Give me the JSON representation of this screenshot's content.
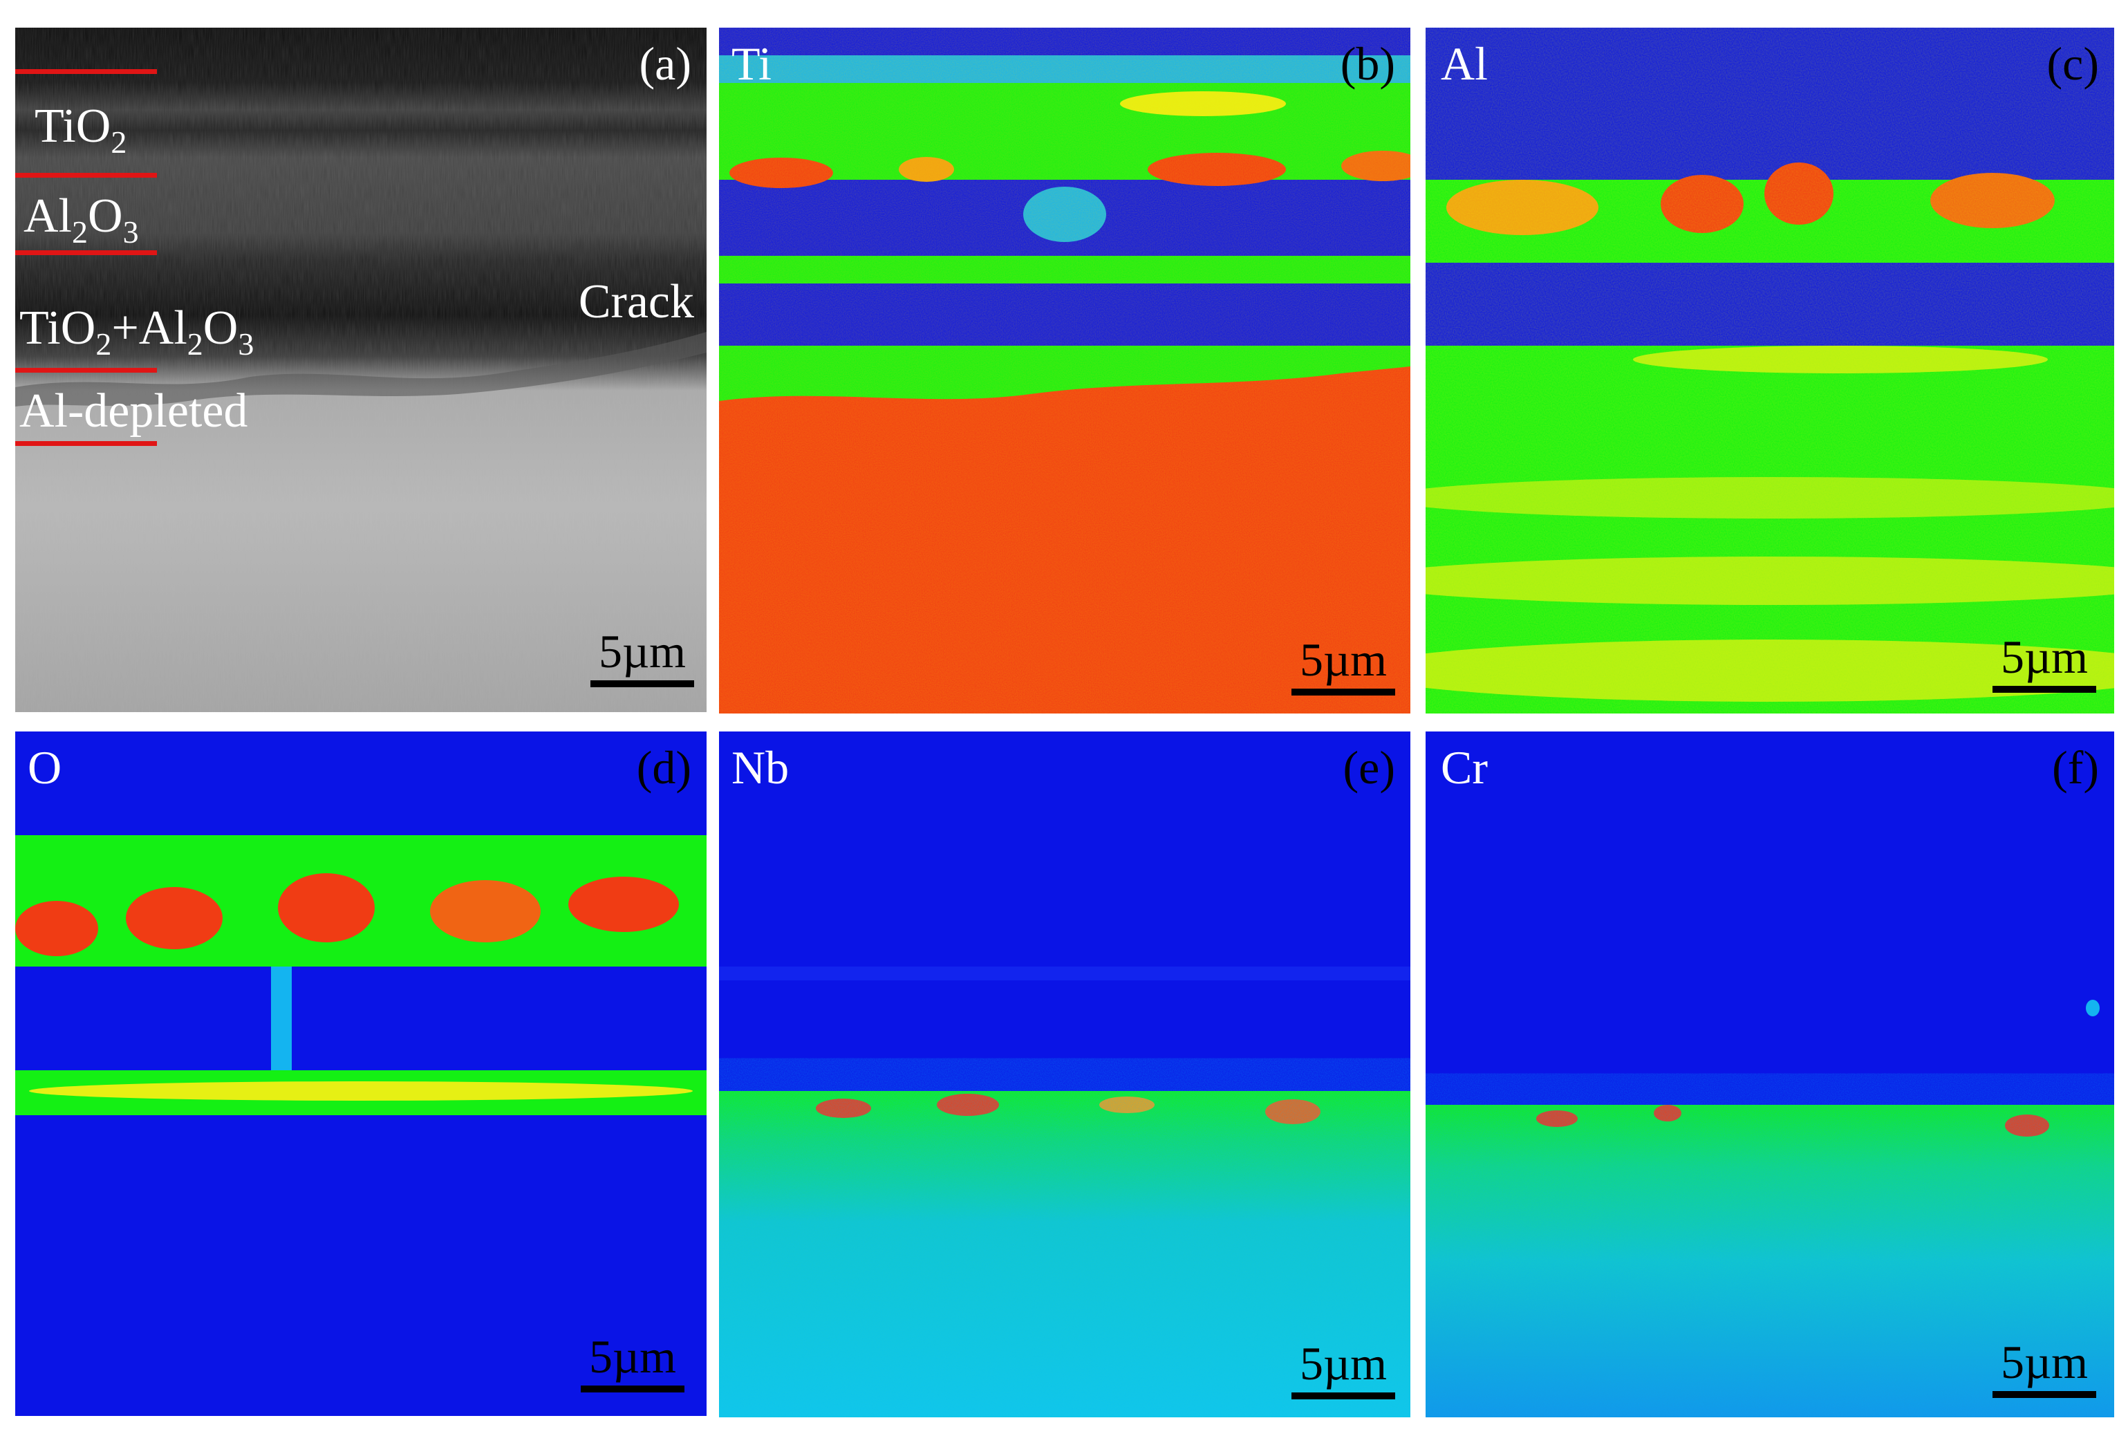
{
  "panels": {
    "a": {
      "tag": "(a)",
      "scale": "5µm",
      "layers": {
        "tio2": [
          "TiO",
          "2"
        ],
        "al2o3": [
          "Al",
          "2",
          "O",
          "3"
        ],
        "mixed": [
          "TiO",
          "2",
          "+Al",
          "2",
          "O",
          "3"
        ],
        "depleted": "Al-depleted"
      },
      "crack": "Crack"
    },
    "b": {
      "tag": "(b)",
      "element": "Ti",
      "scale": "5µm"
    },
    "c": {
      "tag": "(c)",
      "element": "Al",
      "scale": "5µm"
    },
    "d": {
      "tag": "(d)",
      "element": "O",
      "scale": "5µm"
    },
    "e": {
      "tag": "(e)",
      "element": "Nb",
      "scale": "5µm"
    },
    "f": {
      "tag": "(f)",
      "element": "Cr",
      "scale": "5µm"
    }
  },
  "colors": {
    "low": "#0a14e6",
    "mid_low": "#14b4f0",
    "mid": "#14f014",
    "mid_high": "#e6f014",
    "high": "#f03c14",
    "marker": "#e01515"
  }
}
